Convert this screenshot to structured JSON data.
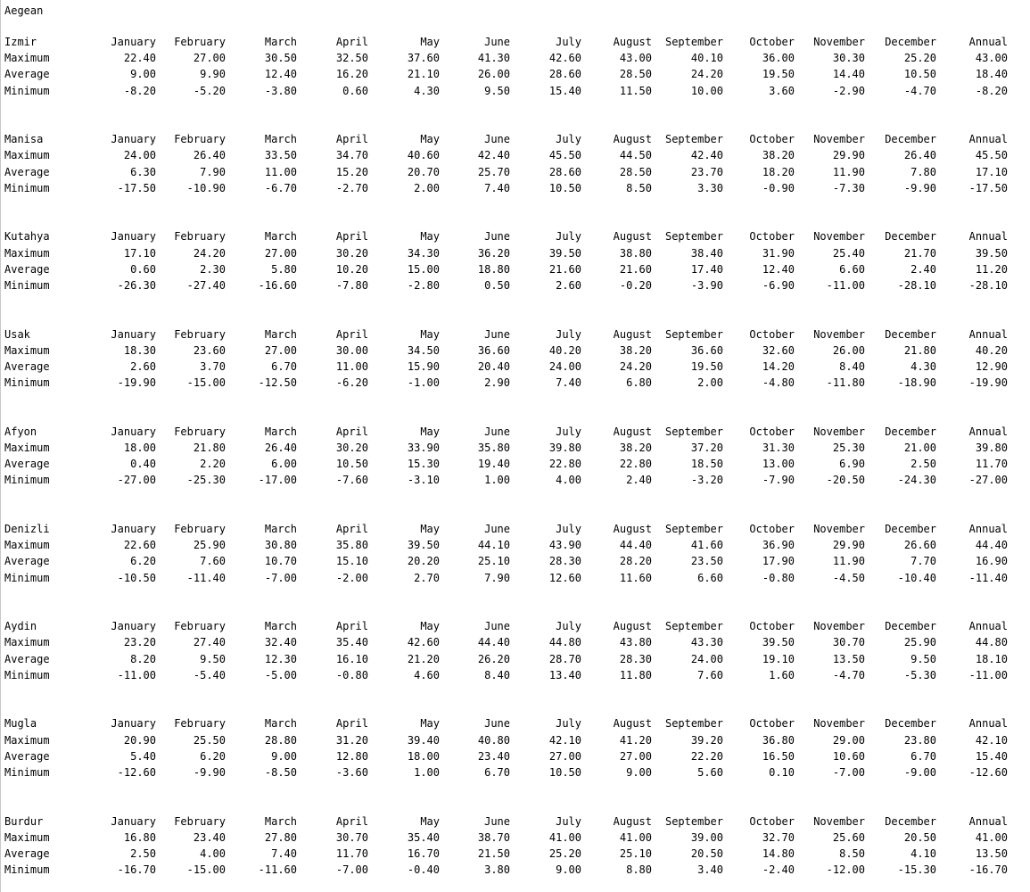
{
  "title": "Aegean",
  "columns": [
    "January",
    "February",
    "March",
    "April",
    "May",
    "June",
    "July",
    "August",
    "September",
    "October",
    "November",
    "December",
    "Annual"
  ],
  "row_labels": [
    "Maximum",
    "Average",
    "Minimum"
  ],
  "cities": [
    {
      "name": "Izmir",
      "rows": [
        [
          "22.40",
          "27.00",
          "30.50",
          "32.50",
          "37.60",
          "41.30",
          "42.60",
          "43.00",
          "40.10",
          "36.00",
          "30.30",
          "25.20",
          "43.00"
        ],
        [
          "9.00",
          "9.90",
          "12.40",
          "16.20",
          "21.10",
          "26.00",
          "28.60",
          "28.50",
          "24.20",
          "19.50",
          "14.40",
          "10.50",
          "18.40"
        ],
        [
          "-8.20",
          "-5.20",
          "-3.80",
          "0.60",
          "4.30",
          "9.50",
          "15.40",
          "11.50",
          "10.00",
          "3.60",
          "-2.90",
          "-4.70",
          "-8.20"
        ]
      ]
    },
    {
      "name": "Manisa",
      "rows": [
        [
          "24.00",
          "26.40",
          "33.50",
          "34.70",
          "40.60",
          "42.40",
          "45.50",
          "44.50",
          "42.40",
          "38.20",
          "29.90",
          "26.40",
          "45.50"
        ],
        [
          "6.30",
          "7.90",
          "11.00",
          "15.20",
          "20.70",
          "25.70",
          "28.60",
          "28.50",
          "23.70",
          "18.20",
          "11.90",
          "7.80",
          "17.10"
        ],
        [
          "-17.50",
          "-10.90",
          "-6.70",
          "-2.70",
          "2.00",
          "7.40",
          "10.50",
          "8.50",
          "3.30",
          "-0.90",
          "-7.30",
          "-9.90",
          "-17.50"
        ]
      ]
    },
    {
      "name": "Kutahya",
      "rows": [
        [
          "17.10",
          "24.20",
          "27.00",
          "30.20",
          "34.30",
          "36.20",
          "39.50",
          "38.80",
          "38.40",
          "31.90",
          "25.40",
          "21.70",
          "39.50"
        ],
        [
          "0.60",
          "2.30",
          "5.80",
          "10.20",
          "15.00",
          "18.80",
          "21.60",
          "21.60",
          "17.40",
          "12.40",
          "6.60",
          "2.40",
          "11.20"
        ],
        [
          "-26.30",
          "-27.40",
          "-16.60",
          "-7.80",
          "-2.80",
          "0.50",
          "2.60",
          "-0.20",
          "-3.90",
          "-6.90",
          "-11.00",
          "-28.10",
          "-28.10"
        ]
      ]
    },
    {
      "name": "Usak",
      "rows": [
        [
          "18.30",
          "23.60",
          "27.00",
          "30.00",
          "34.50",
          "36.60",
          "40.20",
          "38.20",
          "36.60",
          "32.60",
          "26.00",
          "21.80",
          "40.20"
        ],
        [
          "2.60",
          "3.70",
          "6.70",
          "11.00",
          "15.90",
          "20.40",
          "24.00",
          "24.20",
          "19.50",
          "14.20",
          "8.40",
          "4.30",
          "12.90"
        ],
        [
          "-19.90",
          "-15.00",
          "-12.50",
          "-6.20",
          "-1.00",
          "2.90",
          "7.40",
          "6.80",
          "2.00",
          "-4.80",
          "-11.80",
          "-18.90",
          "-19.90"
        ]
      ]
    },
    {
      "name": "Afyon",
      "rows": [
        [
          "18.00",
          "21.80",
          "26.40",
          "30.20",
          "33.90",
          "35.80",
          "39.80",
          "38.20",
          "37.20",
          "31.30",
          "25.30",
          "21.00",
          "39.80"
        ],
        [
          "0.40",
          "2.20",
          "6.00",
          "10.50",
          "15.30",
          "19.40",
          "22.80",
          "22.80",
          "18.50",
          "13.00",
          "6.90",
          "2.50",
          "11.70"
        ],
        [
          "-27.00",
          "-25.30",
          "-17.00",
          "-7.60",
          "-3.10",
          "1.00",
          "4.00",
          "2.40",
          "-3.20",
          "-7.90",
          "-20.50",
          "-24.30",
          "-27.00"
        ]
      ]
    },
    {
      "name": "Denizli",
      "rows": [
        [
          "22.60",
          "25.90",
          "30.80",
          "35.80",
          "39.50",
          "44.10",
          "43.90",
          "44.40",
          "41.60",
          "36.90",
          "29.90",
          "26.60",
          "44.40"
        ],
        [
          "6.20",
          "7.60",
          "10.70",
          "15.10",
          "20.20",
          "25.10",
          "28.30",
          "28.20",
          "23.50",
          "17.90",
          "11.90",
          "7.70",
          "16.90"
        ],
        [
          "-10.50",
          "-11.40",
          "-7.00",
          "-2.00",
          "2.70",
          "7.90",
          "12.60",
          "11.60",
          "6.60",
          "-0.80",
          "-4.50",
          "-10.40",
          "-11.40"
        ]
      ]
    },
    {
      "name": "Aydin",
      "rows": [
        [
          "23.20",
          "27.40",
          "32.40",
          "35.40",
          "42.60",
          "44.40",
          "44.80",
          "43.80",
          "43.30",
          "39.50",
          "30.70",
          "25.90",
          "44.80"
        ],
        [
          "8.20",
          "9.50",
          "12.30",
          "16.10",
          "21.20",
          "26.20",
          "28.70",
          "28.30",
          "24.00",
          "19.10",
          "13.50",
          "9.50",
          "18.10"
        ],
        [
          "-11.00",
          "-5.40",
          "-5.00",
          "-0.80",
          "4.60",
          "8.40",
          "13.40",
          "11.80",
          "7.60",
          "1.60",
          "-4.70",
          "-5.30",
          "-11.00"
        ]
      ]
    },
    {
      "name": "Mugla",
      "rows": [
        [
          "20.90",
          "25.50",
          "28.80",
          "31.20",
          "39.40",
          "40.80",
          "42.10",
          "41.20",
          "39.20",
          "36.80",
          "29.00",
          "23.80",
          "42.10"
        ],
        [
          "5.40",
          "6.20",
          "9.00",
          "12.80",
          "18.00",
          "23.40",
          "27.00",
          "27.00",
          "22.20",
          "16.50",
          "10.60",
          "6.70",
          "15.40"
        ],
        [
          "-12.60",
          "-9.90",
          "-8.50",
          "-3.60",
          "1.00",
          "6.70",
          "10.50",
          "9.00",
          "5.60",
          "0.10",
          "-7.00",
          "-9.00",
          "-12.60"
        ]
      ]
    },
    {
      "name": "Burdur",
      "rows": [
        [
          "16.80",
          "23.40",
          "27.80",
          "30.70",
          "35.40",
          "38.70",
          "41.00",
          "41.00",
          "39.00",
          "32.70",
          "25.60",
          "20.50",
          "41.00"
        ],
        [
          "2.50",
          "4.00",
          "7.40",
          "11.70",
          "16.70",
          "21.50",
          "25.20",
          "25.10",
          "20.50",
          "14.80",
          "8.50",
          "4.10",
          "13.50"
        ],
        [
          "-16.70",
          "-15.00",
          "-11.60",
          "-7.00",
          "-0.40",
          "3.80",
          "9.00",
          "8.80",
          "3.40",
          "-2.40",
          "-12.00",
          "-15.30",
          "-16.70"
        ]
      ]
    }
  ]
}
